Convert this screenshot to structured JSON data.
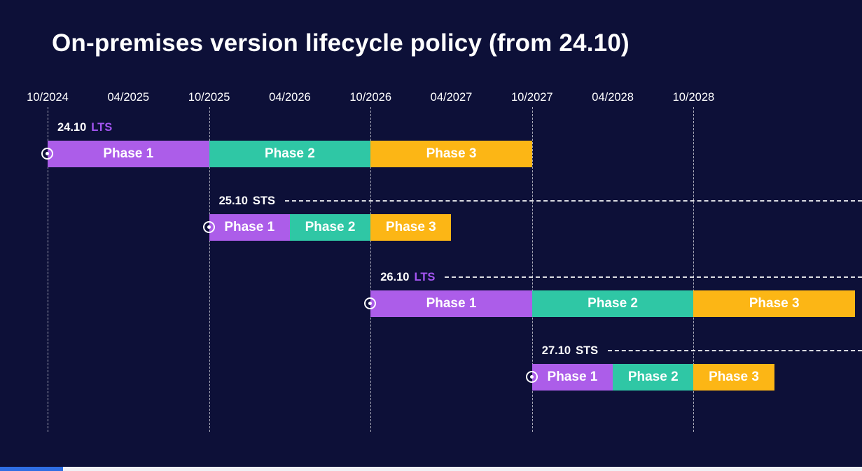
{
  "colors": {
    "background": "#0D1038",
    "purple": "#AC5DE9",
    "teal": "#2FC7A5",
    "yellow": "#FCB615",
    "lts_accent": "#A455F2",
    "sts_accent": "#FFFFFF",
    "text": "#FFFFFF",
    "footer_blue": "#2F6EE3",
    "footer_white": "#F0F1F5"
  },
  "chart_data": {
    "type": "gantt",
    "title": "On-premises version lifecycle policy (from 24.10)",
    "x_tick_labels": [
      "10/2024",
      "04/2025",
      "10/2025",
      "04/2026",
      "10/2026",
      "04/2027",
      "10/2027",
      "04/2028",
      "10/2028"
    ],
    "x_tick_interval_months": 6,
    "gridline_ticks": [
      "10/2024",
      "10/2025",
      "10/2026",
      "10/2027",
      "10/2028"
    ],
    "legend_position": "none",
    "rows": [
      {
        "version": "24.10",
        "release_type": "LTS",
        "start": "10/2024",
        "leader_line": false,
        "marker": "release-start",
        "phases": [
          {
            "label": "Phase 1",
            "start": "10/2024",
            "end": "10/2025",
            "duration_months": 12,
            "color": "purple"
          },
          {
            "label": "Phase 2",
            "start": "10/2025",
            "end": "10/2026",
            "duration_months": 12,
            "color": "teal"
          },
          {
            "label": "Phase 3",
            "start": "10/2026",
            "end": "10/2027",
            "duration_months": 12,
            "color": "yellow"
          }
        ]
      },
      {
        "version": "25.10",
        "release_type": "STS",
        "start": "10/2025",
        "leader_line": true,
        "marker": "release-start",
        "phases": [
          {
            "label": "Phase 1",
            "start": "10/2025",
            "end": "04/2026",
            "duration_months": 6,
            "color": "purple"
          },
          {
            "label": "Phase 2",
            "start": "04/2026",
            "end": "10/2026",
            "duration_months": 6,
            "color": "teal"
          },
          {
            "label": "Phase 3",
            "start": "10/2026",
            "end": "04/2027",
            "duration_months": 6,
            "color": "yellow"
          }
        ]
      },
      {
        "version": "26.10",
        "release_type": "LTS",
        "start": "10/2026",
        "leader_line": true,
        "marker": "release-start",
        "phases": [
          {
            "label": "Phase 1",
            "start": "10/2026",
            "end": "10/2027",
            "duration_months": 12,
            "color": "purple"
          },
          {
            "label": "Phase 2",
            "start": "10/2027",
            "end": "10/2028",
            "duration_months": 12,
            "color": "teal"
          },
          {
            "label": "Phase 3",
            "start": "10/2028",
            "end": "10/2029",
            "duration_months": 12,
            "color": "yellow"
          }
        ]
      },
      {
        "version": "27.10",
        "release_type": "STS",
        "start": "10/2027",
        "leader_line": true,
        "marker": "release-start",
        "phases": [
          {
            "label": "Phase 1",
            "start": "10/2027",
            "end": "04/2028",
            "duration_months": 6,
            "color": "purple"
          },
          {
            "label": "Phase 2",
            "start": "04/2028",
            "end": "10/2028",
            "duration_months": 6,
            "color": "teal"
          },
          {
            "label": "Phase 3",
            "start": "10/2028",
            "end": "04/2029",
            "duration_months": 6,
            "color": "yellow"
          }
        ]
      }
    ]
  }
}
